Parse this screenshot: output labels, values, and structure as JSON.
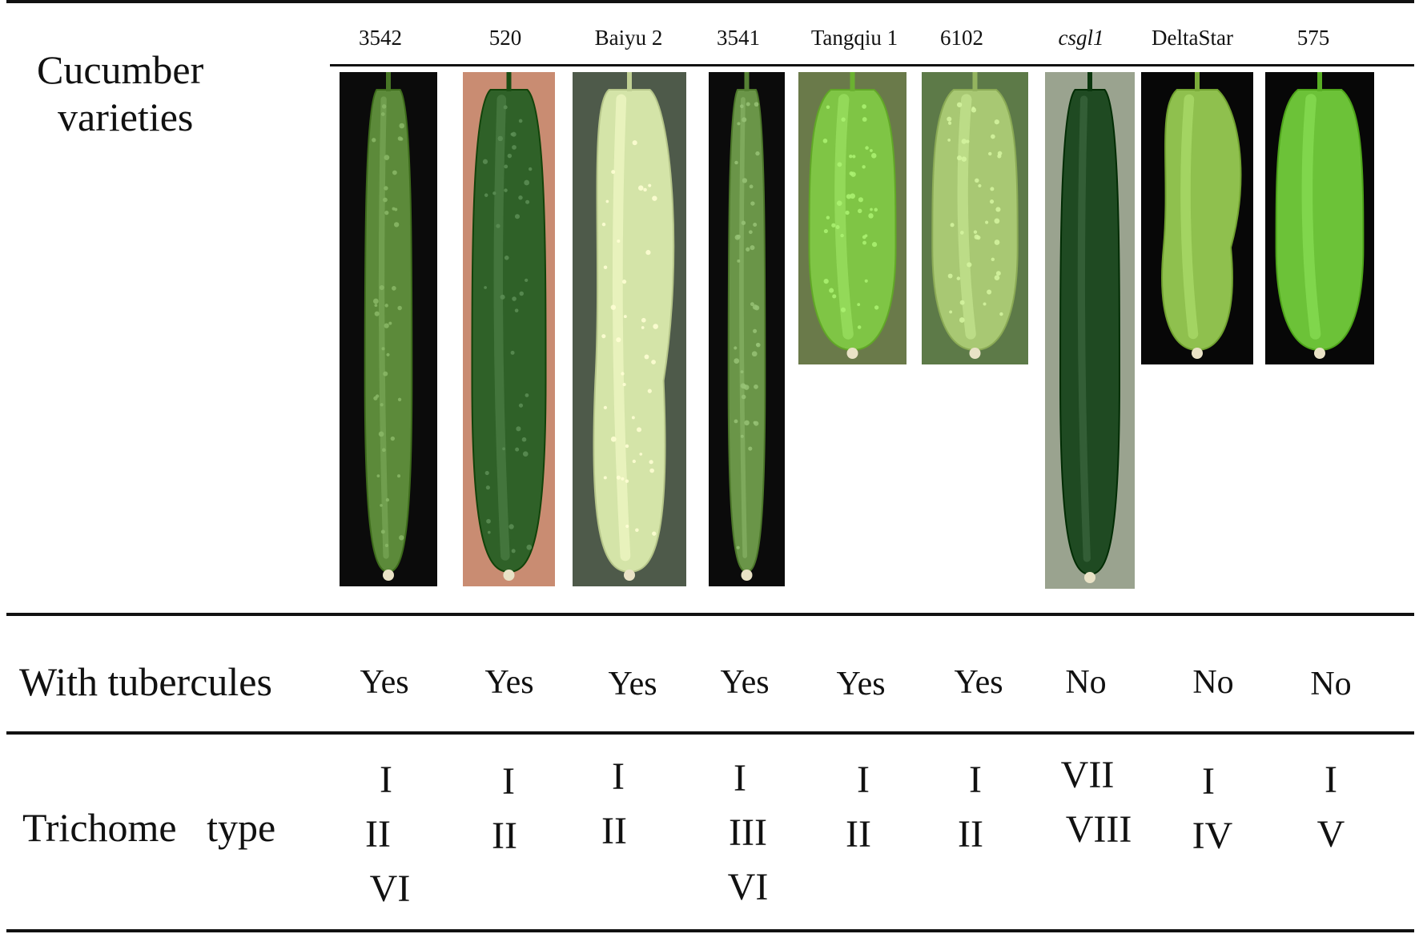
{
  "header": {
    "row1_label_line1": "Cucumber",
    "row1_label_line2": "varieties",
    "row2_label": "With tubercules",
    "row3_label": "Trichome   type"
  },
  "varieties": [
    {
      "name": "3542",
      "tubercules": "Yes",
      "trichome": [
        "I",
        "II",
        "VI"
      ],
      "bg": "#0b0b0b",
      "fruit": "#5c8a3a",
      "italic": false
    },
    {
      "name": "520",
      "tubercules": "Yes",
      "trichome": [
        "I",
        "II"
      ],
      "bg": "#c98c72",
      "fruit": "#2f6128",
      "italic": false
    },
    {
      "name": "Baiyu 2",
      "tubercules": "Yes",
      "trichome": [
        "I",
        "II"
      ],
      "bg": "#4e5a4a",
      "fruit": "#d4e4a8",
      "italic": false
    },
    {
      "name": "3541",
      "tubercules": "Yes",
      "trichome": [
        "I",
        "III",
        "VI"
      ],
      "bg": "#0b0b0b",
      "fruit": "#6a9548",
      "italic": false
    },
    {
      "name": "Tangqiu 1",
      "tubercules": "Yes",
      "trichome": [
        "I",
        "II"
      ],
      "bg": "#6a7a4a",
      "fruit": "#7fc545",
      "italic": false
    },
    {
      "name": "6102",
      "tubercules": "Yes",
      "trichome": [
        "I",
        "II"
      ],
      "bg": "#5d7a48",
      "fruit": "#a8c873",
      "italic": false
    },
    {
      "name": "csgl1",
      "tubercules": "No",
      "trichome": [
        "VII",
        "VIII"
      ],
      "bg": "#9aa38f",
      "fruit": "#1f4a22",
      "italic": true
    },
    {
      "name": "DeltaStar",
      "tubercules": "No",
      "trichome": [
        "I",
        "IV"
      ],
      "bg": "#070707",
      "fruit": "#8fc04e",
      "italic": false
    },
    {
      "name": "575",
      "tubercules": "No",
      "trichome": [
        "I",
        "V"
      ],
      "bg": "#070707",
      "fruit": "#6cc238",
      "italic": false
    }
  ]
}
